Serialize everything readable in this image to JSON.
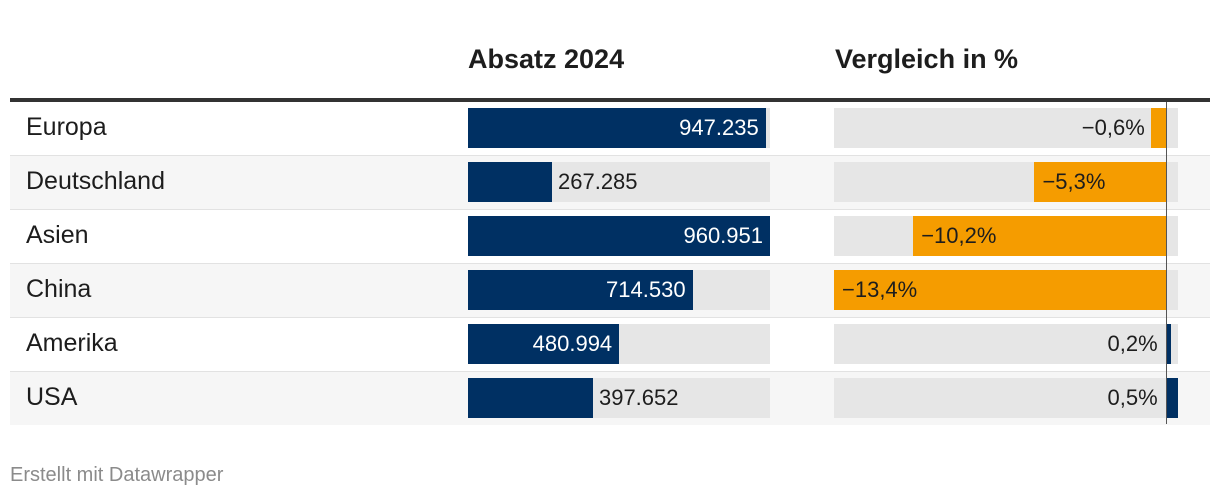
{
  "header": {
    "sales_title": "Absatz 2024",
    "comparison_title": "Vergleich in %"
  },
  "chart_data": {
    "type": "table",
    "columns": [
      "Absatz 2024",
      "Vergleich in %"
    ],
    "sales_max": 960951,
    "comparison_range": [
      -13.4,
      0.5
    ],
    "rows": [
      {
        "label": "Europa",
        "sales": 947235,
        "sales_text": "947.235",
        "change": -0.6,
        "change_text": "−0,6%"
      },
      {
        "label": "Deutschland",
        "sales": 267285,
        "sales_text": "267.285",
        "change": -5.3,
        "change_text": "−5,3%"
      },
      {
        "label": "Asien",
        "sales": 960951,
        "sales_text": "960.951",
        "change": -10.2,
        "change_text": "−10,2%"
      },
      {
        "label": "China",
        "sales": 714530,
        "sales_text": "714.530",
        "change": -13.4,
        "change_text": "−13,4%"
      },
      {
        "label": "Amerika",
        "sales": 480994,
        "sales_text": "480.994",
        "change": 0.2,
        "change_text": "0,2%"
      },
      {
        "label": "USA",
        "sales": 397652,
        "sales_text": "397.652",
        "change": 0.5,
        "change_text": "0,5%"
      }
    ],
    "colors": {
      "sales_bar": "#003063",
      "negative": "#f59c00",
      "positive": "#003063",
      "track": "#e6e6e6"
    }
  },
  "footer": {
    "credit": "Erstellt mit Datawrapper"
  }
}
